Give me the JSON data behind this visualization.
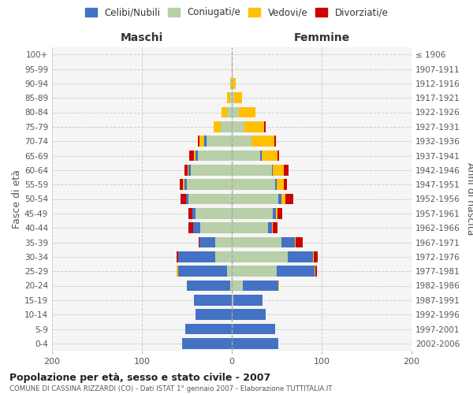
{
  "age_groups": [
    "100+",
    "95-99",
    "90-94",
    "85-89",
    "80-84",
    "75-79",
    "70-74",
    "65-69",
    "60-64",
    "55-59",
    "50-54",
    "45-49",
    "40-44",
    "35-39",
    "30-34",
    "25-29",
    "20-24",
    "15-19",
    "10-14",
    "5-9",
    "0-4"
  ],
  "birth_years": [
    "≤ 1906",
    "1907-1911",
    "1912-1916",
    "1917-1921",
    "1922-1926",
    "1927-1931",
    "1932-1936",
    "1937-1941",
    "1942-1946",
    "1947-1951",
    "1952-1956",
    "1957-1961",
    "1962-1966",
    "1967-1971",
    "1972-1976",
    "1977-1981",
    "1982-1986",
    "1987-1991",
    "1992-1996",
    "1997-2001",
    "2002-2006"
  ],
  "males": {
    "celibi": [
      0,
      0,
      0,
      0,
      0,
      0,
      3,
      2,
      2,
      3,
      3,
      4,
      8,
      18,
      42,
      55,
      48,
      42,
      40,
      52,
      55
    ],
    "coniugati": [
      0,
      0,
      1,
      2,
      5,
      12,
      28,
      38,
      46,
      50,
      48,
      40,
      35,
      18,
      18,
      5,
      2,
      0,
      0,
      0,
      0
    ],
    "vedovi": [
      0,
      0,
      1,
      3,
      6,
      8,
      5,
      2,
      1,
      1,
      0,
      0,
      0,
      0,
      0,
      1,
      0,
      0,
      0,
      0,
      0
    ],
    "divorziati": [
      0,
      0,
      0,
      0,
      0,
      0,
      2,
      5,
      4,
      4,
      6,
      4,
      5,
      1,
      1,
      0,
      0,
      0,
      0,
      0,
      0
    ]
  },
  "females": {
    "nubili": [
      0,
      0,
      0,
      0,
      0,
      0,
      0,
      1,
      1,
      2,
      3,
      3,
      5,
      15,
      28,
      42,
      40,
      32,
      38,
      48,
      52
    ],
    "coniugate": [
      0,
      0,
      1,
      3,
      8,
      14,
      22,
      32,
      45,
      48,
      52,
      46,
      40,
      55,
      62,
      50,
      12,
      2,
      0,
      0,
      0
    ],
    "vedove": [
      0,
      1,
      3,
      8,
      18,
      22,
      25,
      18,
      12,
      8,
      5,
      2,
      1,
      1,
      1,
      1,
      1,
      0,
      0,
      0,
      0
    ],
    "divorziate": [
      0,
      0,
      0,
      0,
      0,
      2,
      2,
      2,
      5,
      3,
      8,
      5,
      5,
      8,
      5,
      2,
      0,
      0,
      0,
      0,
      0
    ]
  },
  "colors": {
    "celibi": "#4472c4",
    "coniugati": "#b8cfa8",
    "vedovi": "#ffc000",
    "divorziati": "#cc0000"
  },
  "xlim": 200,
  "title": "Popolazione per età, sesso e stato civile - 2007",
  "subtitle": "COMUNE DI CASSINA RIZZARDI (CO) - Dati ISTAT 1° gennaio 2007 - Elaborazione TUTTITALIA.IT",
  "ylabel_left": "Fasce di età",
  "ylabel_right": "Anni di nascita",
  "legend_labels": [
    "Celibi/Nubili",
    "Coniugati/e",
    "Vedovi/e",
    "Divorziati/e"
  ],
  "background_color": "#ffffff"
}
